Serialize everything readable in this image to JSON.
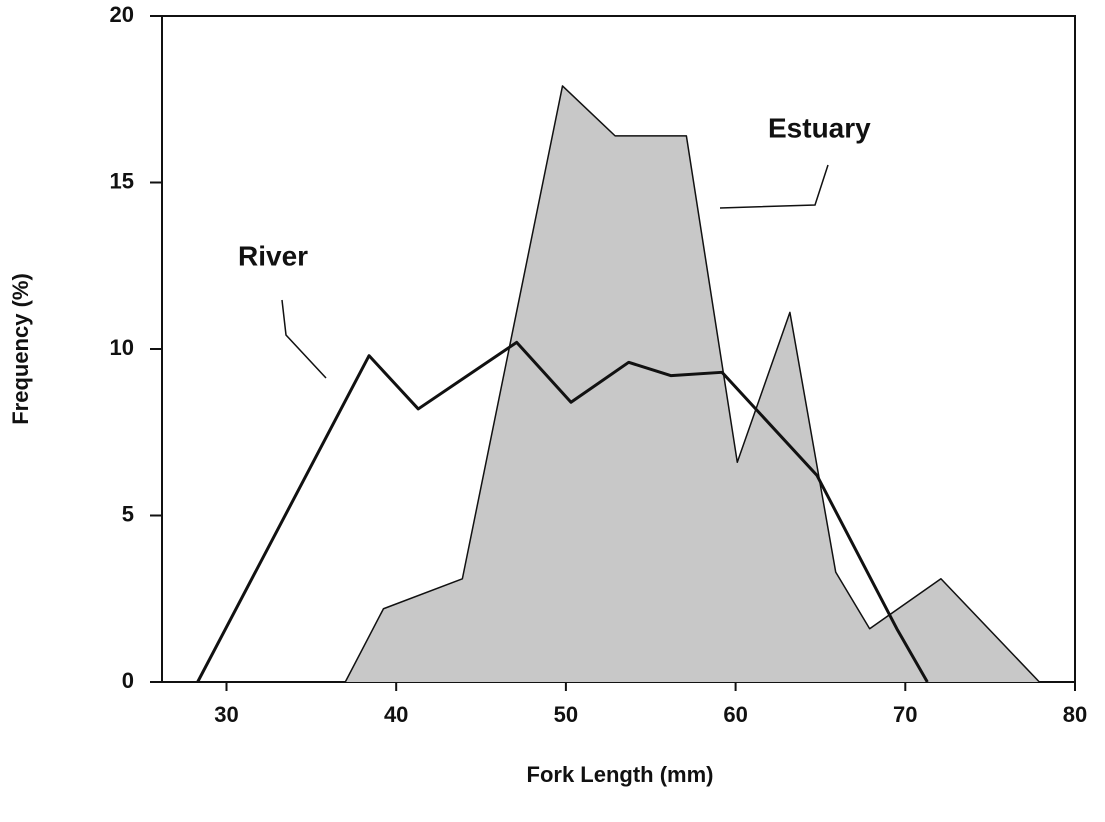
{
  "chart_data": {
    "type": "line",
    "xlabel": "Fork Length (mm)",
    "ylabel": "Frequency (%)",
    "xlim": [
      26.2,
      80
    ],
    "ylim": [
      0,
      20
    ],
    "xticks": [
      30,
      40,
      50,
      60,
      70,
      80
    ],
    "yticks": [
      0,
      5,
      10,
      15,
      20
    ],
    "series": [
      {
        "name": "River",
        "color": "#111111",
        "fill": null,
        "x": [
          28.3,
          38.4,
          41.3,
          47.1,
          50.3,
          53.7,
          56.2,
          59.2,
          64.8,
          69.5,
          71.3
        ],
        "values": [
          0,
          9.8,
          8.2,
          10.2,
          8.4,
          9.6,
          9.2,
          9.3,
          6.2,
          1.6,
          0
        ]
      },
      {
        "name": "Estuary",
        "color": "#111111",
        "fill": "#c8c8c8",
        "x": [
          37.0,
          39.25,
          43.9,
          49.8,
          52.9,
          57.1,
          60.1,
          63.2,
          65.9,
          67.9,
          72.1,
          77.9
        ],
        "values": [
          0,
          2.2,
          3.1,
          17.9,
          16.4,
          16.4,
          6.6,
          11.1,
          3.3,
          1.6,
          3.1,
          0
        ]
      }
    ]
  }
}
